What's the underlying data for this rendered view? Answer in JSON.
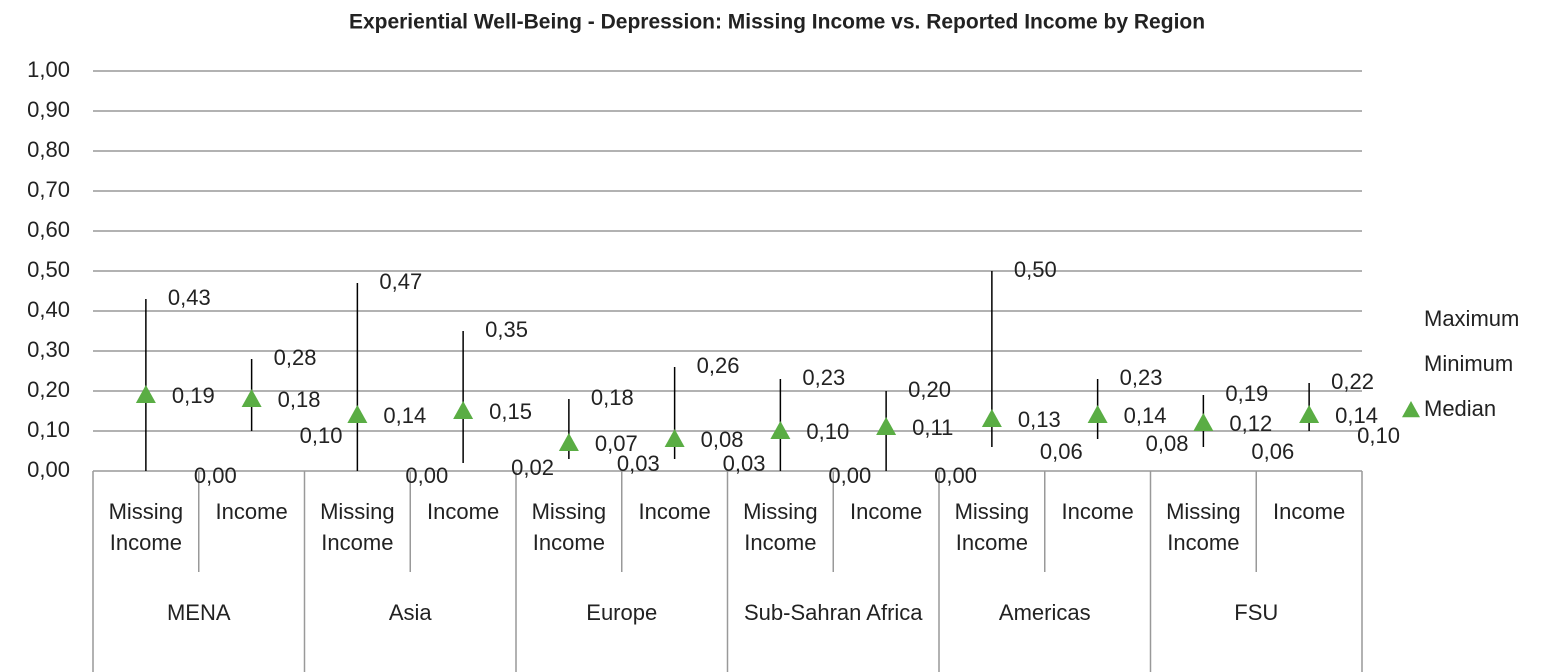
{
  "chart_data": {
    "type": "high-low",
    "title": "Experiential Well-Being - Depression: Missing Income vs. Reported Income by Region",
    "groups": [
      "MENA",
      "Asia",
      "Europe",
      "Sub-Sahran Africa",
      "Americas",
      "FSU"
    ],
    "categories": [
      "Missing Income",
      "Income",
      "Missing Income",
      "Income",
      "Missing Income",
      "Income",
      "Missing Income",
      "Income",
      "Missing Income",
      "Income",
      "Missing Income",
      "Income"
    ],
    "series": [
      {
        "name": "Maximum",
        "values": [
          0.43,
          0.28,
          0.47,
          0.35,
          0.18,
          0.26,
          0.23,
          0.2,
          0.5,
          0.23,
          0.19,
          0.22
        ],
        "value_labels": [
          "0,43",
          "0,28",
          "0,47",
          "0,35",
          "0,18",
          "0,26",
          "0,23",
          "0,20",
          "0,50",
          "0,23",
          "0,19",
          "0,22"
        ]
      },
      {
        "name": "Minimum",
        "values": [
          0.0,
          0.1,
          0.0,
          0.02,
          0.03,
          0.03,
          0.0,
          0.0,
          0.06,
          0.08,
          0.06,
          0.1
        ],
        "value_labels": [
          "0,00",
          "0,10",
          "0,00",
          "0,02",
          "0,03",
          "0,03",
          "0,00",
          "0,00",
          "0,06",
          "0,08",
          "0,06",
          "0,10"
        ]
      },
      {
        "name": "Median",
        "color": "#5aad44",
        "values": [
          0.19,
          0.18,
          0.14,
          0.15,
          0.07,
          0.08,
          0.1,
          0.11,
          0.13,
          0.14,
          0.12,
          0.14
        ],
        "value_labels": [
          "0,19",
          "0,18",
          "0,14",
          "0,15",
          "0,07",
          "0,08",
          "0,10",
          "0,11",
          "0,13",
          "0,14",
          "0,12",
          "0,14"
        ]
      }
    ],
    "line_color": "#000000",
    "ylim": [
      0,
      1
    ],
    "yticks": [
      {
        "value": 0,
        "label": "0,00"
      },
      {
        "value": 0.1,
        "label": "0,10"
      },
      {
        "value": 0.2,
        "label": "0,20"
      },
      {
        "value": 0.3,
        "label": "0,30"
      },
      {
        "value": 0.4,
        "label": "0,40"
      },
      {
        "value": 0.5,
        "label": "0,50"
      },
      {
        "value": 0.6,
        "label": "0,60"
      },
      {
        "value": 0.7,
        "label": "0,70"
      },
      {
        "value": 0.8,
        "label": "0,80"
      },
      {
        "value": 0.9,
        "label": "0,90"
      },
      {
        "value": 1,
        "label": "1,00"
      }
    ],
    "grid": true,
    "legend": "right"
  }
}
